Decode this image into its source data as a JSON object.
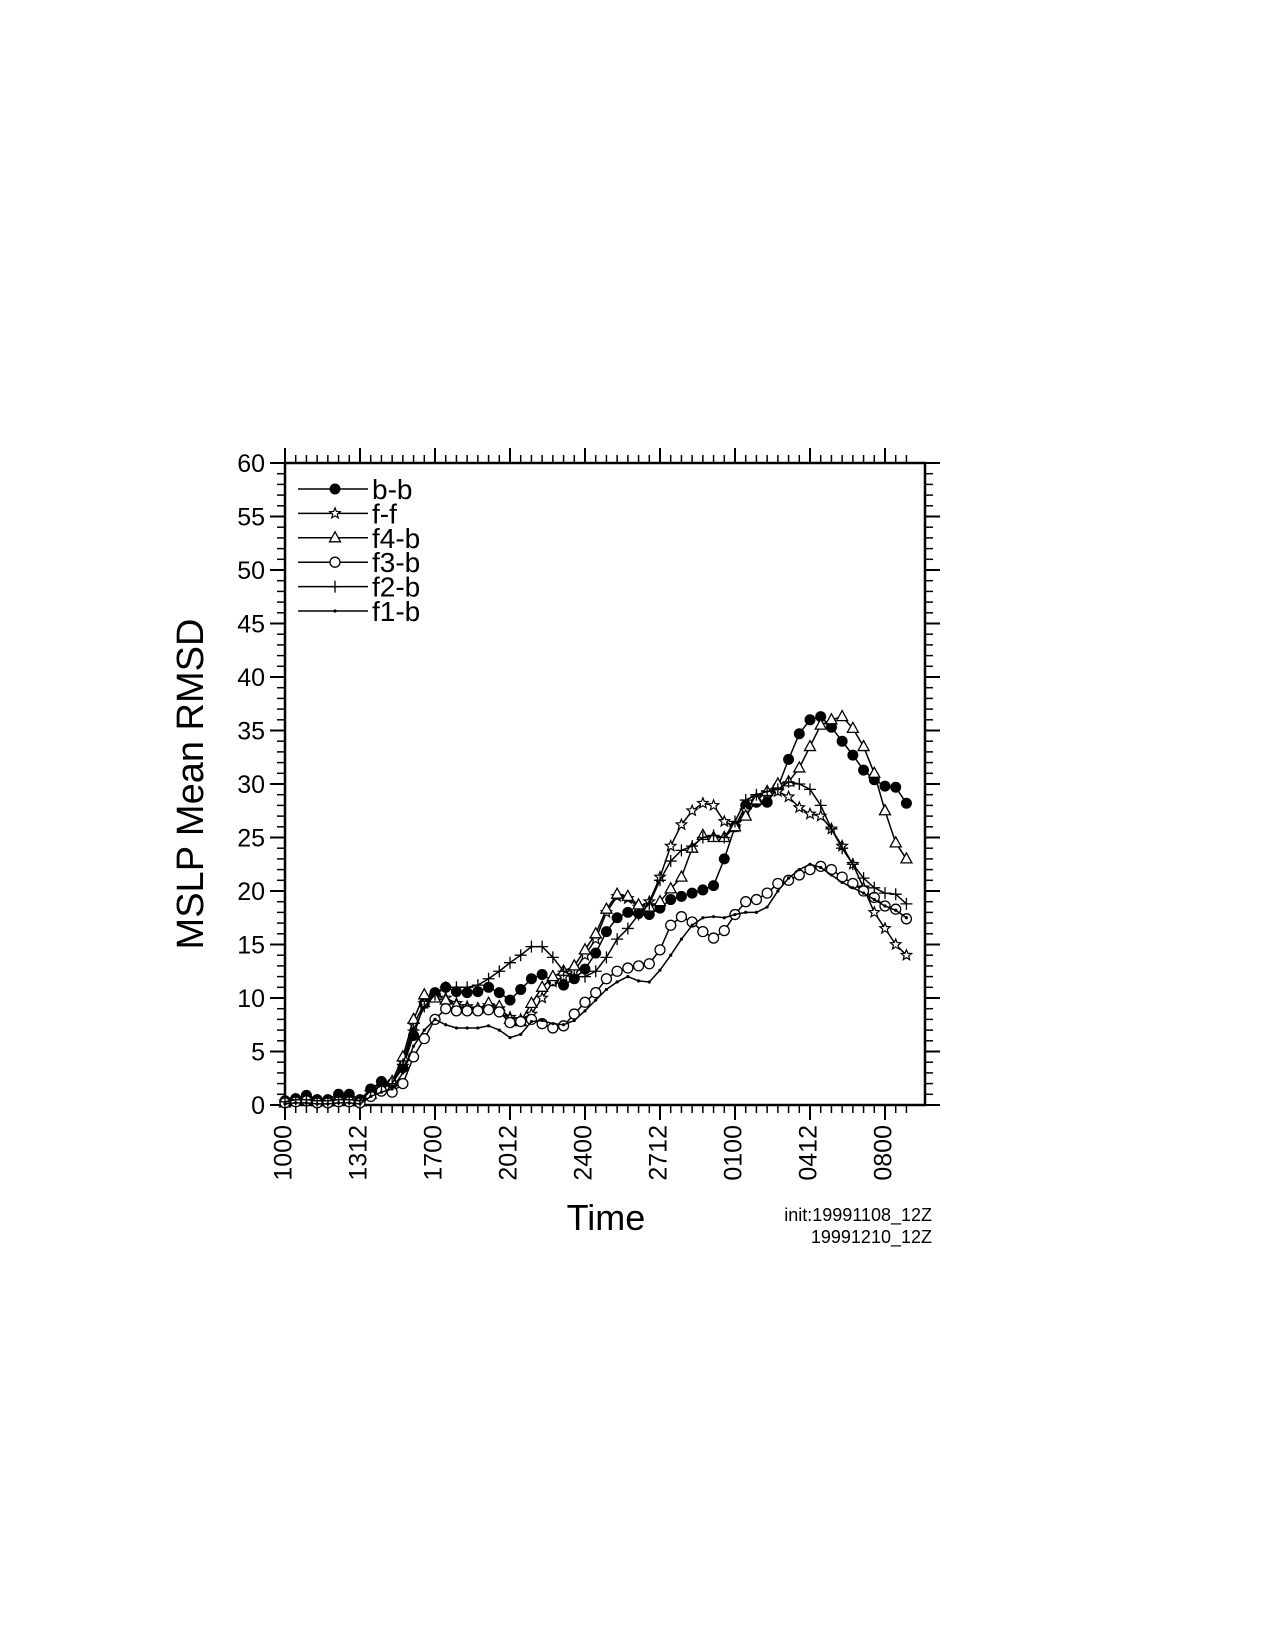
{
  "chart_data": {
    "type": "line",
    "y_label": "MSLP Mean RMSD",
    "x_label": "Time",
    "annotations": [
      "init:19991108_12Z",
      "19991210_12Z"
    ],
    "categories": [
      "1000",
      null,
      null,
      null,
      null,
      null,
      null,
      "1312",
      null,
      null,
      null,
      null,
      null,
      null,
      "1700",
      null,
      null,
      null,
      null,
      null,
      null,
      "2012",
      null,
      null,
      null,
      null,
      null,
      null,
      "2400",
      null,
      null,
      null,
      null,
      null,
      null,
      "2712",
      null,
      null,
      null,
      null,
      null,
      null,
      "0100",
      null,
      null,
      null,
      null,
      null,
      null,
      "0412",
      null,
      null,
      null,
      null,
      null,
      null,
      "0800",
      null,
      null
    ],
    "ylim": [
      0,
      60
    ],
    "yticks": [
      0,
      5,
      10,
      15,
      20,
      25,
      30,
      35,
      40,
      45,
      50,
      55,
      60
    ],
    "legend": "upper left",
    "series": [
      {
        "name": "b-b",
        "color": "#000000",
        "marker": "filled-circle",
        "values": [
          0.4,
          0.6,
          0.9,
          0.5,
          0.5,
          1.0,
          1.0,
          0.5,
          1.5,
          2.2,
          2.0,
          3.5,
          6.5,
          9.5,
          10.5,
          11.0,
          10.6,
          10.5,
          10.6,
          11.0,
          10.5,
          9.8,
          10.8,
          11.8,
          12.2,
          11.6,
          11.2,
          11.8,
          12.7,
          14.2,
          16.2,
          17.5,
          18.0,
          17.9,
          17.8,
          18.4,
          19.2,
          19.5,
          19.8,
          20.1,
          20.5,
          23.0,
          26.0,
          28.0,
          28.3,
          28.3,
          29.7,
          32.3,
          34.7,
          36.0,
          36.3,
          35.3,
          34.0,
          32.7,
          31.3,
          30.4,
          29.8,
          29.7,
          28.2
        ]
      },
      {
        "name": "f-f",
        "color": "#000000",
        "marker": "star",
        "values": [
          0.3,
          0.5,
          0.6,
          0.4,
          0.4,
          0.6,
          0.6,
          0.4,
          1.2,
          1.6,
          2.0,
          4.0,
          7.5,
          9.5,
          10.2,
          10.0,
          9.5,
          9.2,
          9.0,
          9.3,
          9.0,
          8.2,
          8.0,
          8.5,
          10.0,
          11.5,
          12.0,
          12.5,
          14.0,
          15.5,
          18.0,
          19.5,
          19.3,
          18.5,
          19.0,
          21.3,
          24.2,
          26.2,
          27.5,
          28.2,
          28.0,
          26.5,
          26.0,
          27.5,
          28.7,
          29.2,
          29.3,
          28.8,
          27.8,
          27.2,
          27.0,
          25.8,
          24.2,
          22.5,
          20.3,
          18.0,
          16.5,
          15.0,
          14.0
        ]
      },
      {
        "name": "f4-b",
        "color": "#000000",
        "marker": "triangle",
        "values": [
          0.2,
          0.4,
          0.5,
          0.3,
          0.3,
          0.4,
          0.4,
          0.3,
          1.0,
          1.5,
          2.2,
          4.5,
          8.0,
          10.3,
          10.0,
          9.8,
          9.3,
          9.0,
          9.0,
          9.5,
          9.2,
          8.0,
          7.8,
          9.5,
          11.0,
          12.0,
          12.5,
          13.0,
          14.5,
          16.0,
          18.3,
          19.7,
          19.5,
          18.7,
          18.5,
          19.0,
          20.2,
          21.3,
          24.0,
          25.2,
          25.0,
          25.0,
          26.0,
          27.0,
          28.5,
          29.3,
          30.0,
          30.2,
          31.5,
          33.5,
          35.5,
          36.0,
          36.3,
          35.2,
          33.5,
          31.0,
          27.5,
          24.5,
          23.0
        ]
      },
      {
        "name": "f3-b",
        "color": "#000000",
        "marker": "circle",
        "values": [
          0.2,
          0.3,
          0.4,
          0.2,
          0.2,
          0.3,
          0.3,
          0.2,
          0.8,
          1.3,
          1.2,
          2.0,
          4.5,
          6.2,
          8.0,
          9.0,
          8.8,
          8.8,
          8.8,
          8.9,
          8.7,
          7.7,
          7.8,
          8.0,
          7.6,
          7.2,
          7.4,
          8.5,
          9.6,
          10.5,
          11.8,
          12.5,
          12.8,
          13.0,
          13.2,
          14.5,
          16.8,
          17.6,
          17.1,
          16.2,
          15.6,
          16.3,
          17.8,
          19.0,
          19.2,
          19.8,
          20.7,
          21.0,
          21.5,
          22.0,
          22.3,
          22.0,
          21.3,
          20.7,
          20.0,
          19.4,
          18.6,
          18.3,
          17.4
        ]
      },
      {
        "name": "f2-b",
        "color": "#000000",
        "marker": "plus",
        "values": [
          0.3,
          0.5,
          0.5,
          0.4,
          0.4,
          0.5,
          0.5,
          0.4,
          1.3,
          1.8,
          2.0,
          3.8,
          7.0,
          9.2,
          10.3,
          11.0,
          11.0,
          11.0,
          11.2,
          11.8,
          12.5,
          13.3,
          14.0,
          14.8,
          14.8,
          13.8,
          12.5,
          12.0,
          12.0,
          12.5,
          13.8,
          15.5,
          16.5,
          17.8,
          18.8,
          21.0,
          22.8,
          23.8,
          24.2,
          25.0,
          25.2,
          25.0,
          26.5,
          28.5,
          29.0,
          29.3,
          29.5,
          30.2,
          30.0,
          29.5,
          28.0,
          25.8,
          24.0,
          22.5,
          21.2,
          20.3,
          19.8,
          19.7,
          18.8
        ]
      },
      {
        "name": "f1-b",
        "color": "#000000",
        "marker": "dot",
        "values": [
          0.1,
          0.2,
          0.2,
          0.1,
          0.1,
          0.2,
          0.2,
          0.1,
          0.8,
          1.2,
          1.5,
          3.0,
          5.5,
          7.0,
          8.0,
          7.5,
          7.2,
          7.2,
          7.2,
          7.4,
          7.0,
          6.3,
          6.6,
          7.8,
          7.9,
          7.6,
          7.5,
          7.9,
          8.8,
          9.8,
          10.8,
          11.5,
          12.0,
          11.6,
          11.5,
          12.6,
          14.0,
          15.5,
          16.8,
          17.5,
          17.6,
          17.5,
          17.8,
          18.0,
          18.0,
          18.5,
          20.0,
          21.2,
          22.0,
          22.5,
          22.2,
          21.5,
          20.8,
          20.3,
          19.8,
          19.2,
          18.6,
          18.2,
          17.5
        ]
      }
    ]
  }
}
